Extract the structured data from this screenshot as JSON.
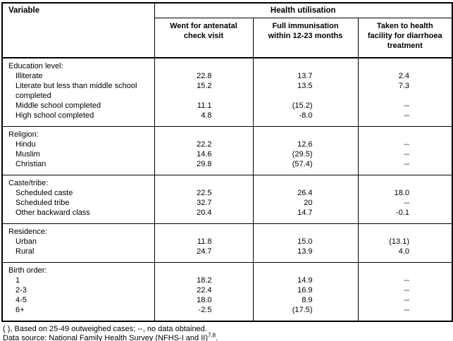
{
  "table": {
    "corner_header": "Variable",
    "group_header": "Health utilisation",
    "columns": [
      "Went for antenatal\ncheck visit",
      "Full immunisation\nwithin 12-23 months",
      "Taken to health\nfacility for diarrhoea\ntreatment"
    ],
    "rows": [
      {
        "type": "section",
        "label": "Education level:",
        "values": [
          "",
          "",
          ""
        ]
      },
      {
        "type": "item",
        "label": "Illiterate",
        "values": [
          "22.8",
          "13.7",
          "2.4"
        ]
      },
      {
        "type": "item",
        "label": "Literate but less than middle school\ncompleted",
        "values": [
          "15.2",
          "13.5",
          "7.3"
        ]
      },
      {
        "type": "item",
        "label": "Middle school completed",
        "values": [
          "11.1",
          "(15.2)",
          "--"
        ]
      },
      {
        "type": "item",
        "label": "High school completed",
        "values": [
          "4.8",
          "-8.0",
          "--"
        ]
      },
      {
        "type": "section",
        "label": "Religion:",
        "values": [
          "",
          "",
          ""
        ]
      },
      {
        "type": "item",
        "label": "Hindu",
        "values": [
          "22.2",
          "12.6",
          "--"
        ]
      },
      {
        "type": "item",
        "label": "Muslim",
        "values": [
          "14.6",
          "(29.5)",
          "--"
        ]
      },
      {
        "type": "item",
        "label": "Christian",
        "values": [
          "29.8",
          "(57.4)",
          "--"
        ]
      },
      {
        "type": "section",
        "label": "Caste/tribe:",
        "values": [
          "",
          "",
          ""
        ]
      },
      {
        "type": "item",
        "label": "Scheduled caste",
        "values": [
          "22.5",
          "26.4",
          "18.0"
        ]
      },
      {
        "type": "item",
        "label": "Scheduled tribe",
        "values": [
          "32.7",
          "20",
          "--"
        ]
      },
      {
        "type": "item",
        "label": "Other backward class",
        "values": [
          "20.4",
          "14.7",
          "-0.1"
        ]
      },
      {
        "type": "section",
        "label": "Residence:",
        "values": [
          "",
          "",
          ""
        ]
      },
      {
        "type": "item",
        "label": "Urban",
        "values": [
          "11.8",
          "15.0",
          "(13.1)"
        ]
      },
      {
        "type": "item",
        "label": "Rural",
        "values": [
          "24.7",
          "13.9",
          "4.0"
        ]
      },
      {
        "type": "section",
        "label": "Birth order:",
        "values": [
          "",
          "",
          ""
        ]
      },
      {
        "type": "item",
        "label": "1",
        "values": [
          "18.2",
          "14.9",
          "--"
        ]
      },
      {
        "type": "item",
        "label": "2-3",
        "values": [
          "22.4",
          "16.9",
          "--"
        ]
      },
      {
        "type": "item",
        "label": "4-5",
        "values": [
          "18.0",
          "8.9",
          "--"
        ]
      },
      {
        "type": "item",
        "label": "6+",
        "values": [
          "-2.5",
          "(17.5)",
          "--"
        ]
      }
    ]
  },
  "footnotes": {
    "line1": "( ), Based on 25-49 outweighed cases; --, no data obtained.",
    "line2_pre": "Data source: National Family Health Survey (NFHS-I and II)",
    "line2_sup": "7,8",
    "line2_post": "."
  },
  "colors": {
    "text": "#000000",
    "border": "#000000",
    "background": "#ffffff"
  }
}
